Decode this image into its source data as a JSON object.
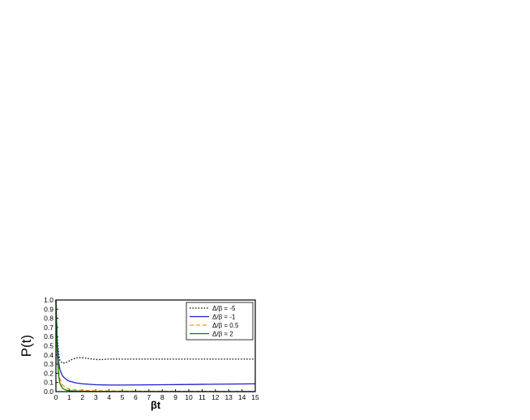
{
  "chart_data": {
    "type": "line",
    "title": "",
    "xlabel": "βt",
    "ylabel": "P(t)",
    "xlim": [
      0,
      15
    ],
    "ylim": [
      0,
      1.0
    ],
    "xticks": [
      "0",
      "1",
      "2",
      "3",
      "4",
      "5",
      "6",
      "7",
      "8",
      "9",
      "10",
      "11",
      "12",
      "13",
      "14",
      "15"
    ],
    "yticks": [
      "0.0",
      "0.1",
      "0.2",
      "0.3",
      "0.4",
      "0.5",
      "0.6",
      "0.7",
      "0.8",
      "0.9",
      "1.0"
    ],
    "grid": false,
    "legend_position": "top-right",
    "series": [
      {
        "name": "Δ/β = -5",
        "color": "#000000",
        "style": "dotted",
        "x": [
          0,
          0.1,
          0.2,
          0.3,
          0.5,
          0.8,
          1.2,
          1.6,
          2.0,
          2.5,
          3.0,
          3.5,
          4.0,
          5.0,
          6.0,
          8.0,
          10.0,
          12.0,
          15.0
        ],
        "y": [
          1.0,
          0.6,
          0.42,
          0.34,
          0.31,
          0.32,
          0.35,
          0.37,
          0.37,
          0.36,
          0.35,
          0.35,
          0.355,
          0.355,
          0.355,
          0.355,
          0.355,
          0.355,
          0.355
        ]
      },
      {
        "name": "Δ/β = -1",
        "color": "#1f1fcc",
        "style": "solid",
        "x": [
          0,
          0.1,
          0.2,
          0.3,
          0.5,
          0.8,
          1.0,
          1.5,
          2.0,
          3.0,
          4.0,
          5.0,
          6.0,
          8.0,
          10.0,
          12.0,
          15.0
        ],
        "y": [
          1.0,
          0.55,
          0.33,
          0.24,
          0.17,
          0.13,
          0.115,
          0.095,
          0.085,
          0.075,
          0.072,
          0.072,
          0.073,
          0.075,
          0.078,
          0.081,
          0.085
        ]
      },
      {
        "name": "Δ/β = 0.5",
        "color": "#ff9900",
        "style": "dashed",
        "x": [
          0,
          0.1,
          0.2,
          0.3,
          0.5,
          0.8,
          1.0,
          1.5,
          2.0,
          3.0,
          4.0,
          6.0,
          10.0,
          15.0
        ],
        "y": [
          1.0,
          0.45,
          0.24,
          0.14,
          0.07,
          0.04,
          0.03,
          0.02,
          0.015,
          0.01,
          0.008,
          0.005,
          0.003,
          0.002
        ]
      },
      {
        "name": "Δ/β = 2",
        "color": "#008000",
        "style": "solid",
        "x": [
          0,
          0.1,
          0.2,
          0.3,
          0.5,
          0.8,
          1.0,
          1.5,
          2.0,
          3.0,
          5.0,
          10.0,
          15.0
        ],
        "y": [
          1.0,
          0.4,
          0.18,
          0.09,
          0.035,
          0.015,
          0.01,
          0.006,
          0.004,
          0.002,
          0.001,
          0.0,
          0.0
        ]
      }
    ]
  }
}
